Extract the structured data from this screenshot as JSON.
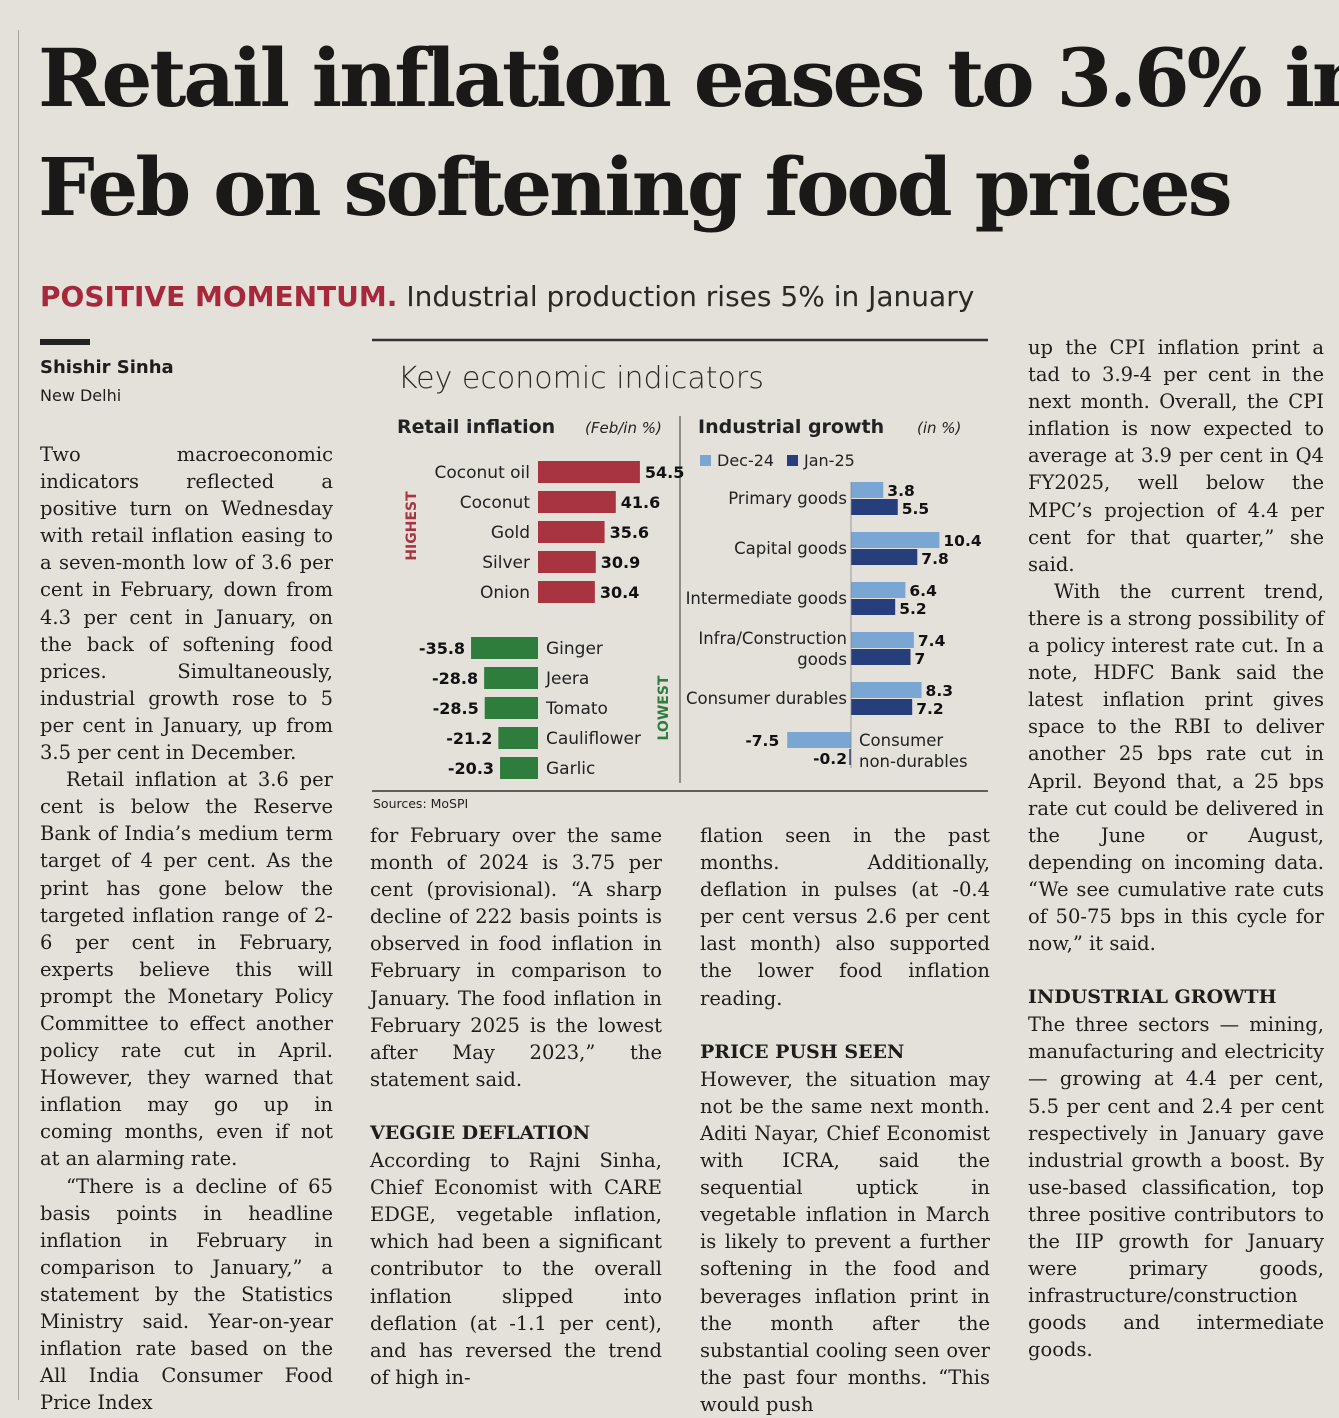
{
  "article": {
    "headline_line1": "Retail inflation eases to 3.6% in",
    "headline_line2": "Feb on softening food prices",
    "kicker_label": "POSITIVE MOMENTUM.",
    "kicker_text": "Industrial production rises 5% in January",
    "author": "Shishir Sinha",
    "location": "New Delhi",
    "col1": {
      "p1": "Two macroeconomic indicators reflected a positive turn on Wednesday with retail inflation easing to a seven-month low of 3.6 per cent in February, down from 4.3 per cent in January, on the back of softening food prices. Simultaneously, industrial growth rose to 5 per cent in January, up from 3.5 per cent in December.",
      "p2": "Retail inflation at 3.6 per cent is below the Reserve Bank of India’s medium term target of 4 per cent. As the print has gone below the targeted inflation range of 2-6 per cent in February, experts believe this will prompt the Monetary Policy Committee to effect another policy rate cut in April. However, they warned that inflation may go up in coming months, even if not at an alarming rate.",
      "p3": "“There is a decline of 65 basis points in headline inflation in February in comparison to January,” a statement by the Statistics Ministry said. Year-on-year inflation rate based on the All India Consumer Food Price Index"
    },
    "col2": {
      "p1": "for February over the same month of 2024 is 3.75 per cent (provisional). “A sharp decline of 222 basis points is observed in food inflation in February in comparison to January. The food inflation in February 2025 is the lowest after May 2023,” the statement said.",
      "subhead": "VEGGIE DEFLATION",
      "p2": "According to Rajni Sinha, Chief Economist with CARE EDGE, vegetable inflation, which had been a significant contributor to the overall inflation slipped into deflation (at -1.1 per cent), and has reversed the trend of high in-"
    },
    "col3": {
      "p1": "flation seen in the past months. Additionally, deflation in pulses (at -0.4 per cent versus 2.6 per cent last month) also supported the lower food inflation reading.",
      "subhead": "PRICE PUSH SEEN",
      "p2": "However, the situation may not be the same next month. Aditi Nayar, Chief Economist with ICRA, said the sequential uptick in vegetable inflation in March is likely to prevent a further softening in the food and beverages inflation print in the month after the substantial cooling seen over the past four months. “This would push"
    },
    "col4": {
      "p1": "up the CPI inflation print a tad to 3.9-4 per cent in the next month. Overall, the CPI inflation is now expected to average at 3.9 per cent in Q4 FY2025, well below the MPC’s projection of 4.4 per cent for that quarter,” she said.",
      "p2": "With the current trend, there is a strong possibility of a policy interest rate cut. In a note, HDFC Bank said the latest inflation print gives space to the RBI to deliver another 25 bps rate cut in April. Beyond that, a 25 bps rate cut could be delivered in the June or August, depending on incoming data. “We see cumulative rate cuts of 50-75 bps in this cycle for now,” it said.",
      "subhead": "INDUSTRIAL GROWTH",
      "p3": "The three sectors — mining, manufacturing and electricity — growing at 4.4 per cent, 5.5 per cent and 2.4 per cent respectively in January gave industrial growth a boost. By use-based classification, top three positive contributors to the IIP growth for January were primary goods, infrastructure/construction goods and intermediate goods."
    }
  },
  "colors": {
    "kicker": "#a6283a",
    "highest_bar": "#a83440",
    "lowest_bar": "#2f7d3c",
    "dec24": "#7aa6d4",
    "jan25": "#263f7c"
  },
  "chart_data": [
    {
      "type": "bar",
      "orientation": "horizontal",
      "title": "Retail inflation",
      "unit_label": "(Feb/in %)",
      "figure_title": "Key economic indicators",
      "source": "Sources: MoSPI",
      "groups": [
        {
          "name": "HIGHEST",
          "categories": [
            "Coconut oil",
            "Coconut",
            "Gold",
            "Silver",
            "Onion"
          ],
          "values": [
            54.5,
            41.6,
            35.6,
            30.9,
            30.4
          ]
        },
        {
          "name": "LOWEST",
          "categories": [
            "Ginger",
            "Jeera",
            "Tomato",
            "Cauliflower",
            "Garlic"
          ],
          "values": [
            -35.8,
            -28.8,
            -28.5,
            -21.2,
            -20.3
          ]
        }
      ]
    },
    {
      "type": "bar",
      "orientation": "horizontal",
      "title": "Industrial growth",
      "unit_label": "(in %)",
      "categories": [
        "Primary goods",
        "Capital goods",
        "Intermediate goods",
        "Infra/Construction goods",
        "Consumer durables",
        "Consumer non-durables"
      ],
      "series": [
        {
          "name": "Dec-24",
          "values": [
            3.8,
            10.4,
            6.4,
            7.4,
            8.3,
            -7.5
          ]
        },
        {
          "name": "Jan-25",
          "values": [
            5.5,
            7.8,
            5.2,
            7,
            7.2,
            -0.2
          ]
        }
      ],
      "value_labels": {
        "Dec-24": [
          "3.8",
          "10.4",
          "6.4",
          "7.4",
          "8.3",
          "-7.5"
        ],
        "Jan-25": [
          "5.5",
          "7.8",
          "5.2",
          "7",
          "7.2",
          "-0.2"
        ]
      }
    }
  ]
}
